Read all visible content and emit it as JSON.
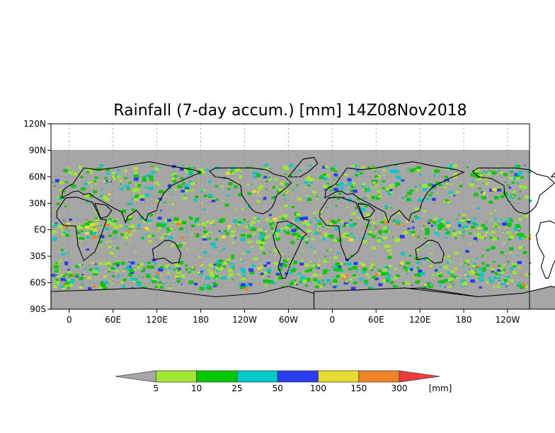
{
  "map": {
    "title": "Rainfall (7-day accum.) [mm] 14Z08Nov2018",
    "lat_ticks": [
      "120N",
      "90N",
      "60N",
      "30N",
      "EQ",
      "30S",
      "60S",
      "90S"
    ],
    "lat_values": [
      120,
      90,
      60,
      30,
      0,
      -30,
      -60,
      -90
    ],
    "lon_ticks": [
      "0",
      "60E",
      "120E",
      "180",
      "120W",
      "60W",
      "0",
      "60E",
      "120E",
      "180",
      "120W"
    ],
    "lon_values": [
      0,
      60,
      120,
      180,
      240,
      300,
      360,
      420,
      480,
      540,
      600
    ],
    "x_range_deg": [
      -25,
      630
    ],
    "y_range_deg": [
      -90,
      120
    ],
    "data_lat_range": [
      -90,
      90
    ],
    "gridlines": "dotted",
    "colors": {
      "no_data": "#ffffff",
      "background_field": "#a6a6a6",
      "coast": "#000000"
    }
  },
  "legend": {
    "labels": [
      "5",
      "10",
      "25",
      "50",
      "100",
      "150",
      "300"
    ],
    "unit": "[mm]",
    "bins": [
      {
        "color": "#a6a6a6"
      },
      {
        "color": "#a0e632"
      },
      {
        "color": "#00c800"
      },
      {
        "color": "#00c8c8"
      },
      {
        "color": "#2a3cf0"
      },
      {
        "color": "#e6dc32"
      },
      {
        "color": "#f08228"
      },
      {
        "color": "#f03c3c"
      }
    ]
  }
}
